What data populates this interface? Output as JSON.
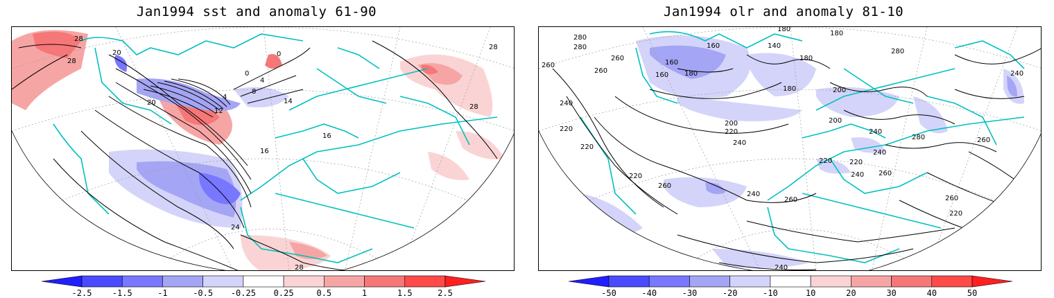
{
  "panels": [
    {
      "title": "Jan1994 sst and anomaly 61-90",
      "colorbar": {
        "ticks": [
          "-2.5",
          "-1.5",
          "-1",
          "-0.5",
          "-0.25",
          "0.25",
          "0.5",
          "1",
          "1.5",
          "2.5"
        ],
        "colors": [
          "#1f1fff",
          "#4a4aff",
          "#7777ff",
          "#a5a5f5",
          "#d4d4fa",
          "#ffffff",
          "#fad4d4",
          "#f6a5a5",
          "#f67777",
          "#ff4a4a",
          "#ff1f1f"
        ]
      },
      "contour_labels": [
        "28",
        "28",
        "28",
        "20",
        "20",
        "0",
        "0",
        "4",
        "4",
        "8",
        "12",
        "16",
        "16",
        "24",
        "28",
        "28",
        "14"
      ]
    },
    {
      "title": "Jan1994 olr and anomaly 81-10",
      "colorbar": {
        "ticks": [
          "-50",
          "-40",
          "-30",
          "-20",
          "-10",
          "10",
          "20",
          "30",
          "40",
          "50"
        ],
        "colors": [
          "#1f1fff",
          "#4a4aff",
          "#7777ff",
          "#a5a5f5",
          "#d4d4fa",
          "#ffffff",
          "#fad4d4",
          "#f6a5a5",
          "#f67777",
          "#ff4a4a",
          "#ff1f1f"
        ]
      },
      "contour_labels": [
        "280",
        "280",
        "260",
        "260",
        "180",
        "160",
        "140",
        "180",
        "180",
        "220",
        "240",
        "260",
        "200",
        "220",
        "200",
        "240",
        "220",
        "240",
        "260",
        "220",
        "260",
        "240",
        "260",
        "280",
        "260",
        "220",
        "200",
        "240",
        "220",
        "240",
        "160",
        "160",
        "180",
        "180",
        "200",
        "240",
        "280",
        "260",
        "240",
        "220",
        "240"
      ]
    }
  ],
  "colors": {
    "coastline": "#00c0c0",
    "contour": "#000000",
    "grid": "#9a9a9a"
  }
}
